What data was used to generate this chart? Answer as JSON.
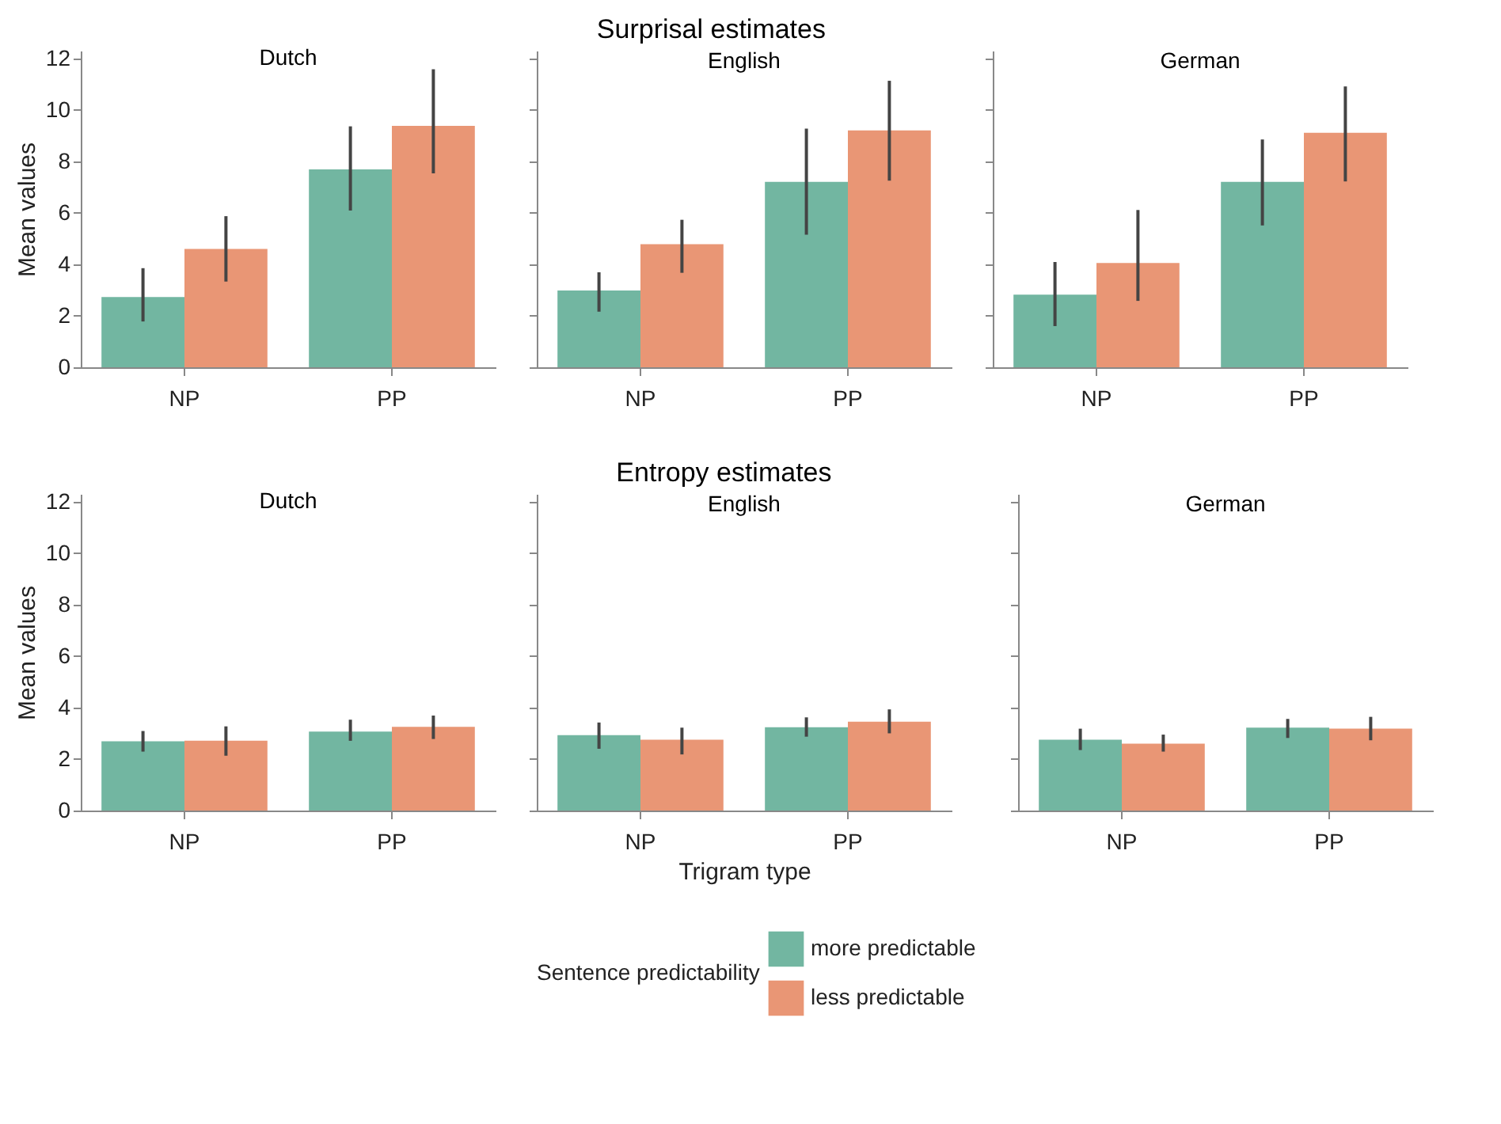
{
  "chart_data": [
    {
      "type": "bar",
      "title": "Dutch",
      "annotations": [
        "Surprisal estimates"
      ],
      "ylabel": "Mean values",
      "categories": [
        "NP",
        "PP"
      ],
      "ylim": [
        0,
        12.3
      ],
      "yticks": [
        0,
        2,
        4,
        6,
        8,
        10,
        12
      ],
      "grid": false,
      "series": [
        {
          "color": "#72b6a1",
          "values": [
            2.73,
            7.69
          ],
          "errors": [
            [
              1.78,
              3.85
            ],
            [
              6.09,
              9.36
            ]
          ]
        },
        {
          "color": "#e99675",
          "values": [
            4.6,
            9.38
          ],
          "errors": [
            [
              3.33,
              5.87
            ],
            [
              7.53,
              11.58
            ]
          ]
        }
      ]
    },
    {
      "type": "bar",
      "title": "English",
      "categories": [
        "NP",
        "PP"
      ],
      "ylim": [
        0,
        12.3
      ],
      "yticks": [
        0,
        2,
        4,
        6,
        8,
        10,
        12
      ],
      "grid": false,
      "tick_labels": "x",
      "series": [
        {
          "color": "#72b6a1",
          "values": [
            2.98,
            7.2
          ],
          "errors": [
            [
              2.16,
              3.69
            ],
            [
              5.15,
              9.27
            ]
          ]
        },
        {
          "color": "#e99675",
          "values": [
            4.78,
            9.2
          ],
          "errors": [
            [
              3.67,
              5.73
            ],
            [
              7.25,
              11.13
            ]
          ]
        }
      ]
    },
    {
      "type": "bar",
      "title": "German",
      "categories": [
        "NP",
        "PP"
      ],
      "ylim": [
        0,
        12.3
      ],
      "yticks": [
        0,
        2,
        4,
        6,
        8,
        10,
        12
      ],
      "grid": false,
      "tick_labels": "x",
      "series": [
        {
          "color": "#72b6a1",
          "values": [
            2.82,
            7.2
          ],
          "errors": [
            [
              1.6,
              4.09
            ],
            [
              5.51,
              8.85
            ]
          ]
        },
        {
          "color": "#e99675",
          "values": [
            4.05,
            9.11
          ],
          "errors": [
            [
              2.58,
              6.11
            ],
            [
              7.22,
              10.91
            ]
          ]
        }
      ]
    },
    {
      "type": "bar",
      "title": "Dutch",
      "annotations": [
        "Entropy estimates"
      ],
      "ylabel": "Mean values",
      "categories": [
        "NP",
        "PP"
      ],
      "ylim": [
        0,
        12.3
      ],
      "yticks": [
        0,
        2,
        4,
        6,
        8,
        10,
        12
      ],
      "grid": false,
      "series": [
        {
          "color": "#72b6a1",
          "values": [
            2.69,
            3.07
          ],
          "errors": [
            [
              2.29,
              3.09
            ],
            [
              2.71,
              3.53
            ]
          ]
        },
        {
          "color": "#e99675",
          "values": [
            2.71,
            3.25
          ],
          "errors": [
            [
              2.13,
              3.27
            ],
            [
              2.78,
              3.69
            ]
          ]
        }
      ]
    },
    {
      "type": "bar",
      "title": "English",
      "xlabel": "Trigram type",
      "legend_title": "Sentence predictability",
      "legend": "bottom",
      "categories": [
        "NP",
        "PP"
      ],
      "ylim": [
        0,
        12.3
      ],
      "yticks": [
        0,
        2,
        4,
        6,
        8,
        10,
        12
      ],
      "grid": false,
      "tick_labels": "x",
      "series": [
        {
          "name": "more predictable",
          "color": "#72b6a1",
          "values": [
            2.93,
            3.24
          ],
          "errors": [
            [
              2.4,
              3.42
            ],
            [
              2.87,
              3.62
            ]
          ]
        },
        {
          "name": "less predictable",
          "color": "#e99675",
          "values": [
            2.75,
            3.45
          ],
          "errors": [
            [
              2.18,
              3.22
            ],
            [
              3.0,
              3.93
            ]
          ]
        }
      ]
    },
    {
      "type": "bar",
      "title": "German",
      "categories": [
        "NP",
        "PP"
      ],
      "ylim": [
        0,
        12.3
      ],
      "yticks": [
        0,
        2,
        4,
        6,
        8,
        10,
        12
      ],
      "grid": false,
      "tick_labels": "x",
      "series": [
        {
          "color": "#72b6a1",
          "values": [
            2.75,
            3.22
          ],
          "errors": [
            [
              2.35,
              3.18
            ],
            [
              2.82,
              3.56
            ]
          ]
        },
        {
          "color": "#e99675",
          "values": [
            2.6,
            3.18
          ],
          "errors": [
            [
              2.29,
              2.95
            ],
            [
              2.73,
              3.64
            ]
          ]
        }
      ]
    }
  ]
}
